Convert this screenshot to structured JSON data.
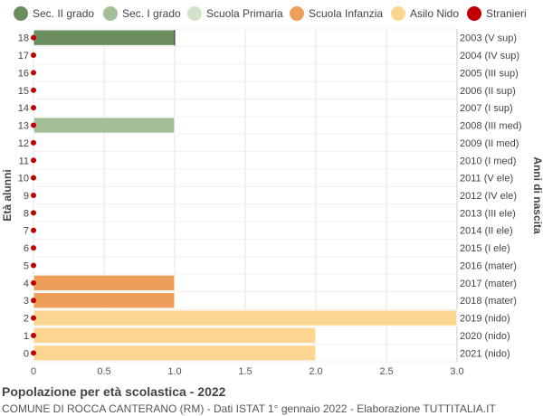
{
  "colors": {
    "sec_ii": "#6b8e5e",
    "sec_i": "#a4bf98",
    "primaria": "#d3e3c7",
    "infanzia": "#ed9f5a",
    "nido": "#fcd690",
    "stranieri": "#c00000",
    "grid": "#e4e4e4"
  },
  "legend": [
    {
      "label": "Sec. II grado",
      "color": "#6b8e5e"
    },
    {
      "label": "Sec. I grado",
      "color": "#a4bf98"
    },
    {
      "label": "Scuola Primaria",
      "color": "#d3e3c7"
    },
    {
      "label": "Scuola Infanzia",
      "color": "#ed9f5a"
    },
    {
      "label": "Asilo Nido",
      "color": "#fcd690"
    },
    {
      "label": "Stranieri",
      "color": "#c00000"
    }
  ],
  "footer": {
    "title": "Popolazione per età scolastica - 2022",
    "subtitle": "COMUNE DI ROCCA CANTERANO (RM) - Dati ISTAT 1° gennaio 2022 - Elaborazione TUTTITALIA.IT"
  },
  "chart_data": {
    "type": "bar",
    "orientation": "horizontal",
    "ylabel": "Età alunni",
    "ylabel_right": "Anni di nascita",
    "xlim": [
      0,
      3.0
    ],
    "xticks": [
      "0",
      "0.5",
      "1.0",
      "1.5",
      "2.0",
      "2.5",
      "3.0"
    ],
    "grid": true,
    "legend_position": "top",
    "categories": [
      {
        "age": "18",
        "year": "2003 (V sup)",
        "value": 1,
        "series": "Sec. II grado",
        "stranieri": 0
      },
      {
        "age": "17",
        "year": "2004 (IV sup)",
        "value": 0,
        "series": "Sec. II grado",
        "stranieri": 0
      },
      {
        "age": "16",
        "year": "2005 (III sup)",
        "value": 0,
        "series": "Sec. II grado",
        "stranieri": 0
      },
      {
        "age": "15",
        "year": "2006 (II sup)",
        "value": 0,
        "series": "Sec. II grado",
        "stranieri": 0
      },
      {
        "age": "14",
        "year": "2007 (I sup)",
        "value": 0,
        "series": "Sec. II grado",
        "stranieri": 0
      },
      {
        "age": "13",
        "year": "2008 (III med)",
        "value": 1,
        "series": "Sec. I grado",
        "stranieri": 0
      },
      {
        "age": "12",
        "year": "2009 (II med)",
        "value": 0,
        "series": "Sec. I grado",
        "stranieri": 0
      },
      {
        "age": "11",
        "year": "2010 (I med)",
        "value": 0,
        "series": "Sec. I grado",
        "stranieri": 0
      },
      {
        "age": "10",
        "year": "2011 (V ele)",
        "value": 0,
        "series": "Scuola Primaria",
        "stranieri": 0
      },
      {
        "age": "9",
        "year": "2012 (IV ele)",
        "value": 0,
        "series": "Scuola Primaria",
        "stranieri": 0
      },
      {
        "age": "8",
        "year": "2013 (III ele)",
        "value": 0,
        "series": "Scuola Primaria",
        "stranieri": 0
      },
      {
        "age": "7",
        "year": "2014 (II ele)",
        "value": 0,
        "series": "Scuola Primaria",
        "stranieri": 0
      },
      {
        "age": "6",
        "year": "2015 (I ele)",
        "value": 0,
        "series": "Scuola Primaria",
        "stranieri": 0
      },
      {
        "age": "5",
        "year": "2016 (mater)",
        "value": 0,
        "series": "Scuola Infanzia",
        "stranieri": 0
      },
      {
        "age": "4",
        "year": "2017 (mater)",
        "value": 1,
        "series": "Scuola Infanzia",
        "stranieri": 0
      },
      {
        "age": "3",
        "year": "2018 (mater)",
        "value": 1,
        "series": "Scuola Infanzia",
        "stranieri": 0
      },
      {
        "age": "2",
        "year": "2019 (nido)",
        "value": 3,
        "series": "Asilo Nido",
        "stranieri": 0
      },
      {
        "age": "1",
        "year": "2020 (nido)",
        "value": 2,
        "series": "Asilo Nido",
        "stranieri": 0
      },
      {
        "age": "0",
        "year": "2021 (nido)",
        "value": 2,
        "series": "Asilo Nido",
        "stranieri": 0
      }
    ]
  }
}
